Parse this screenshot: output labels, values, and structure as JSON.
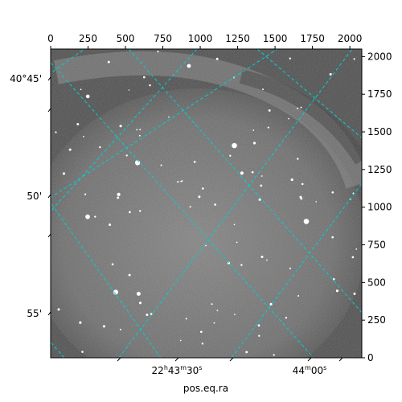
{
  "chart_data": {
    "type": "heatmap",
    "colormap": "gray",
    "image_description": "noisy grayscale sky image with bright stars and a faint arc-shaped nebulosity",
    "pixel_axes": {
      "x": {
        "range": [
          0,
          2080
        ],
        "ticks": [
          0,
          250,
          500,
          750,
          1000,
          1250,
          1500,
          1750,
          2000
        ]
      },
      "y": {
        "range": [
          0,
          2050
        ],
        "ticks": [
          0,
          250,
          500,
          750,
          1000,
          1250,
          1500,
          1750,
          2000
        ],
        "position": "right"
      }
    },
    "world_axes": {
      "ra": {
        "xlabel": "pos.eq.ra",
        "tick_labels": [
          {
            "h": "22",
            "m": "43",
            "s": "30",
            "text": "22h43m30s"
          },
          {
            "h": "",
            "m": "44",
            "s": "00",
            "text": "44m00s"
          }
        ]
      },
      "dec": {
        "tick_labels": [
          "40°45'",
          "50'",
          "55'"
        ]
      }
    },
    "grid": {
      "on": true,
      "color": "#00d0d0",
      "style": "dashed"
    }
  }
}
